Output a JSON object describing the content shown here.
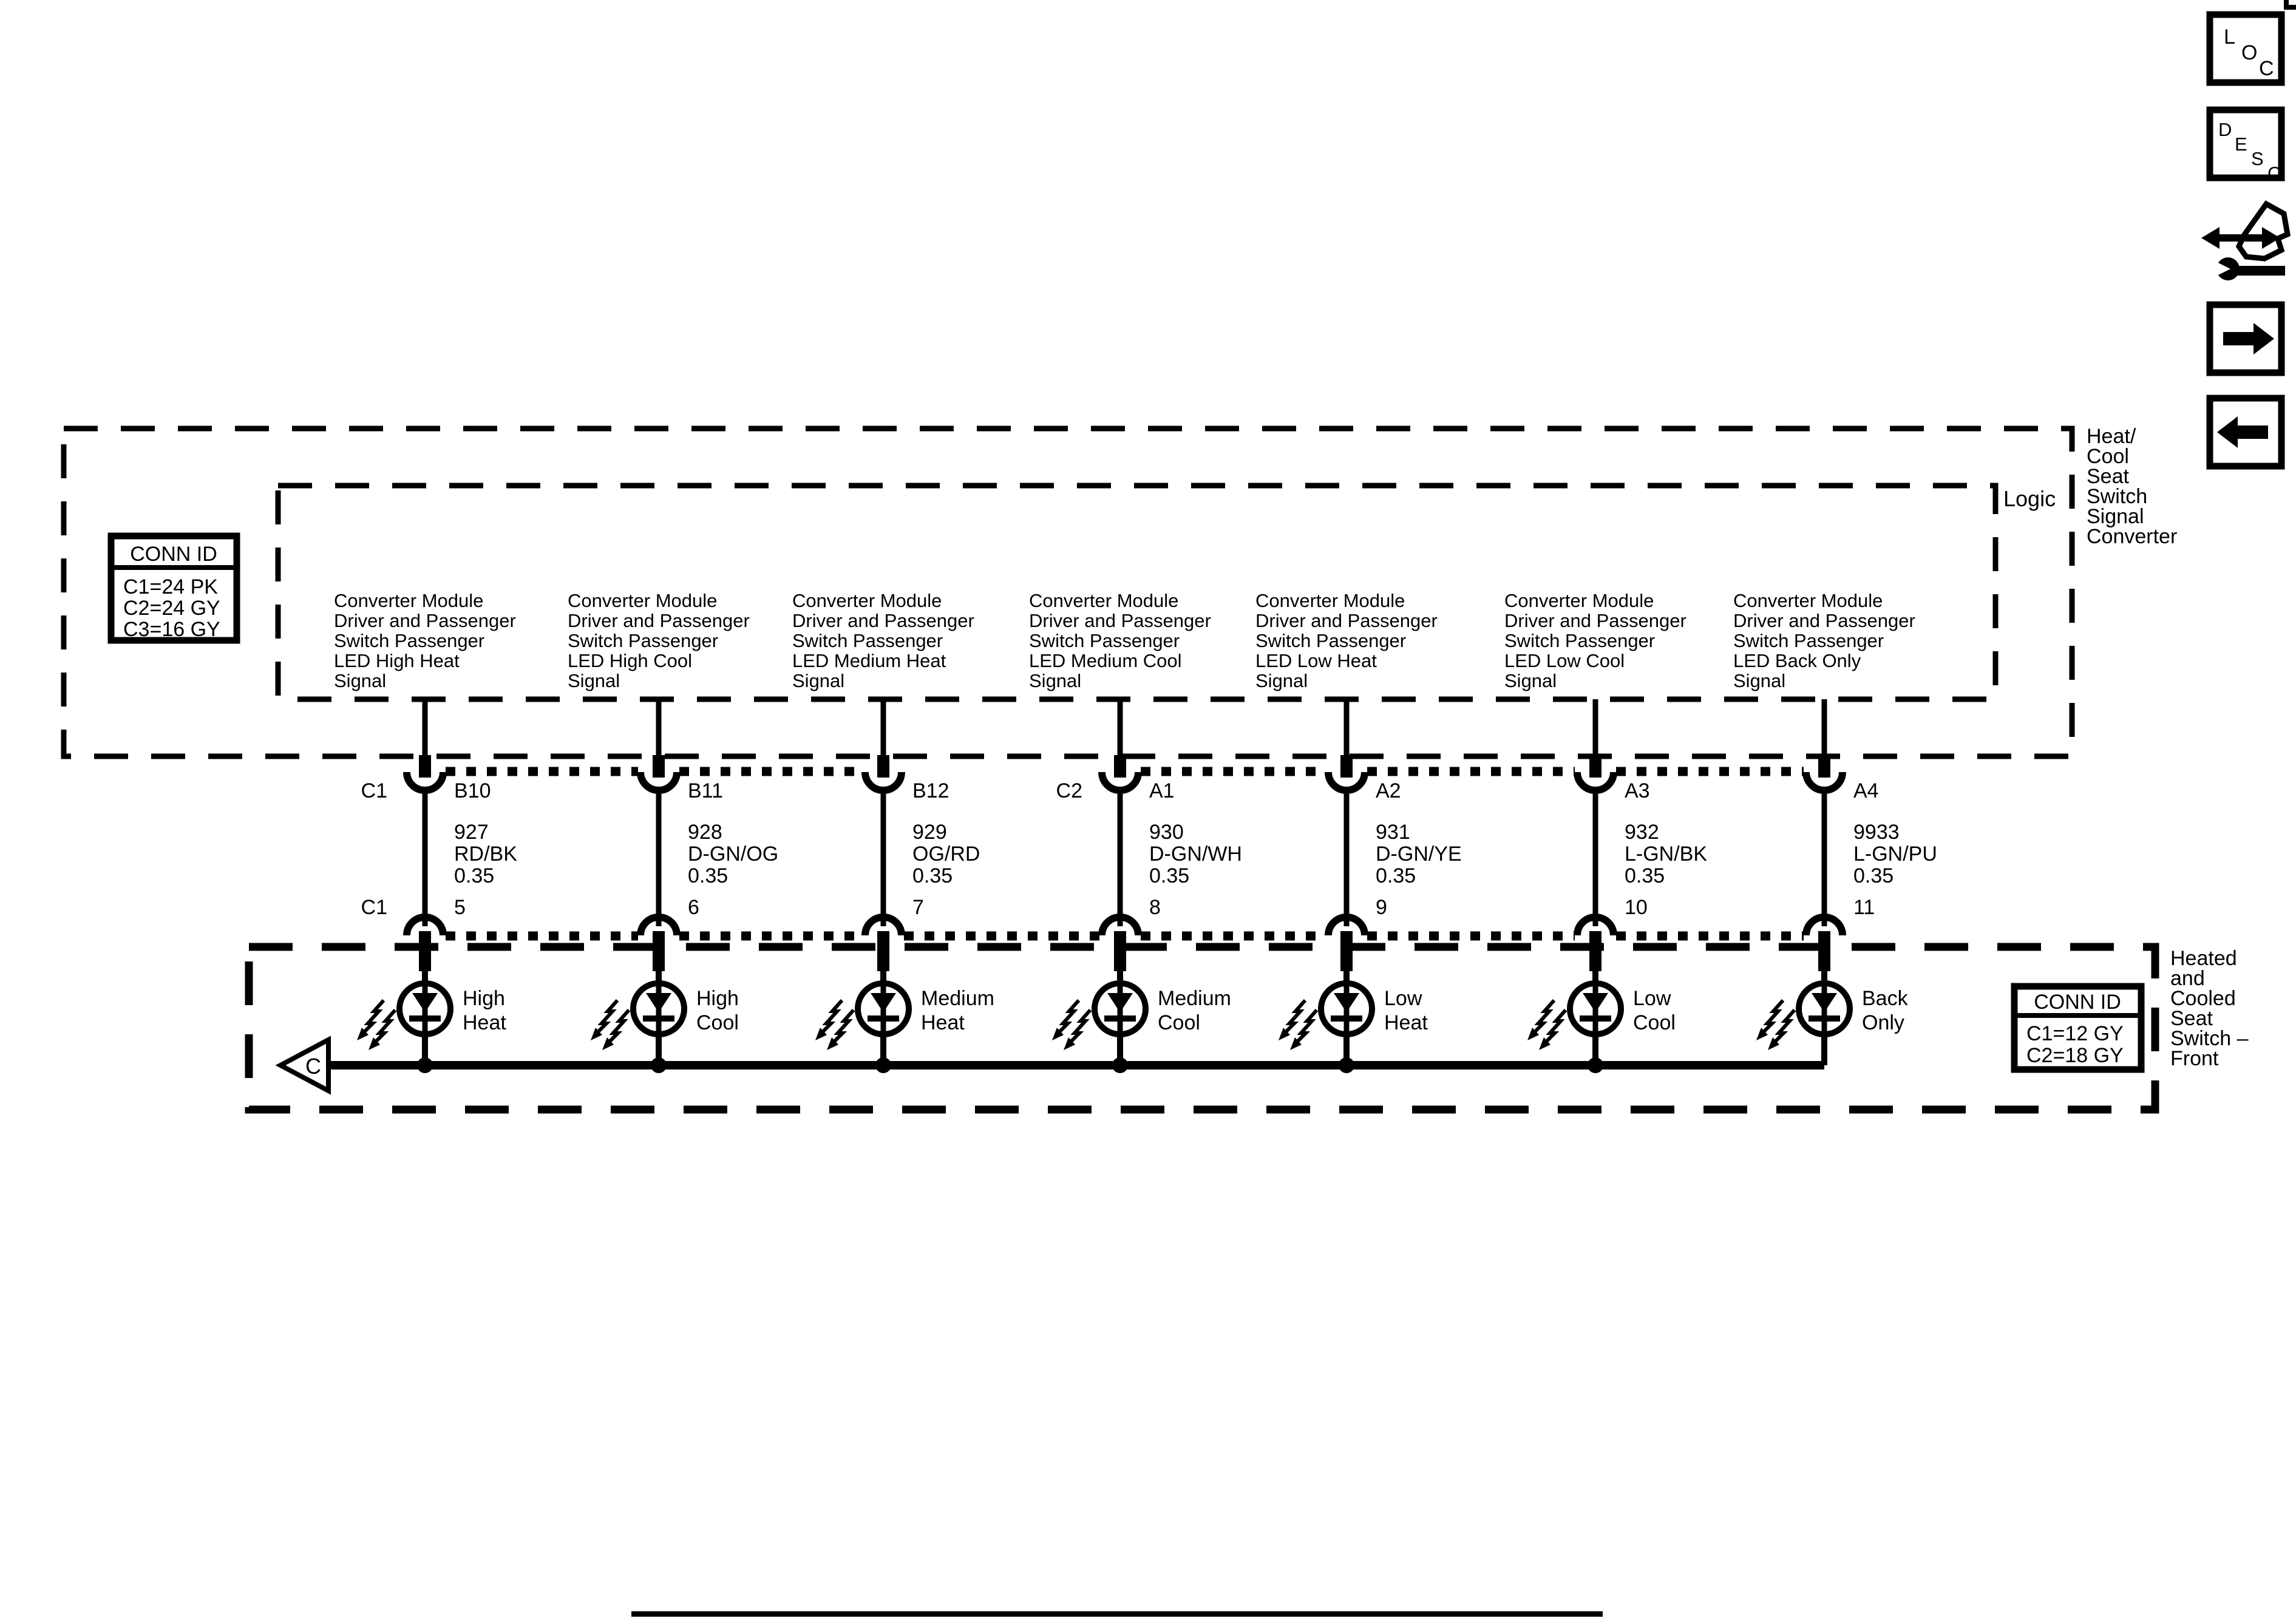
{
  "toolbar": {
    "buttons": [
      {
        "id": "loc",
        "label": "LOC",
        "letters": [
          "L",
          "O",
          "C"
        ]
      },
      {
        "id": "desc",
        "label": "DESC",
        "letters": [
          "D",
          "E",
          "S",
          "C"
        ]
      },
      {
        "id": "service",
        "label": "vehicle-service"
      },
      {
        "id": "forward",
        "label": "right-arrow"
      },
      {
        "id": "back",
        "label": "left-arrow"
      }
    ]
  },
  "converter_box": {
    "title_lines": [
      "Heat/",
      "Cool",
      "Seat",
      "Switch",
      "Signal",
      "Converter"
    ],
    "logic_label": "Logic",
    "conn_id": {
      "header": "CONN ID",
      "rows": [
        "C1=24 PK",
        "C2=24 GY",
        "C3=16 GY"
      ]
    }
  },
  "switch_box": {
    "title_lines": [
      "Heated",
      "and",
      "Cooled",
      "Seat",
      "Switch –",
      "Front"
    ],
    "conn_id": {
      "header": "CONN ID",
      "rows": [
        "C1=12 GY",
        "C2=18 GY"
      ]
    },
    "offpage_ref": "C"
  },
  "columns": [
    {
      "signal_lines": [
        "Converter Module",
        "Driver and Passenger",
        "Switch Passenger",
        "LED High Heat",
        "Signal"
      ],
      "top_conn": "C1",
      "top_pin": "B10",
      "wire": {
        "circuit": "927",
        "color": "RD/BK",
        "gauge": "0.35"
      },
      "bottom_conn": "C1",
      "bottom_pin": "5",
      "led_lines": [
        "High",
        "Heat"
      ]
    },
    {
      "signal_lines": [
        "Converter Module",
        "Driver and Passenger",
        "Switch Passenger",
        "LED High Cool",
        "Signal"
      ],
      "top_conn": "",
      "top_pin": "B11",
      "wire": {
        "circuit": "928",
        "color": "D-GN/OG",
        "gauge": "0.35"
      },
      "bottom_conn": "",
      "bottom_pin": "6",
      "led_lines": [
        "High",
        "Cool"
      ]
    },
    {
      "signal_lines": [
        "Converter Module",
        "Driver and Passenger",
        "Switch Passenger",
        "LED Medium Heat",
        "Signal"
      ],
      "top_conn": "",
      "top_pin": "B12",
      "wire": {
        "circuit": "929",
        "color": "OG/RD",
        "gauge": "0.35"
      },
      "bottom_conn": "",
      "bottom_pin": "7",
      "led_lines": [
        "Medium",
        "Heat"
      ]
    },
    {
      "signal_lines": [
        "Converter Module",
        "Driver and Passenger",
        "Switch Passenger",
        "LED Medium Cool",
        "Signal"
      ],
      "top_conn": "C2",
      "top_pin": "A1",
      "wire": {
        "circuit": "930",
        "color": "D-GN/WH",
        "gauge": "0.35"
      },
      "bottom_conn": "",
      "bottom_pin": "8",
      "led_lines": [
        "Medium",
        "Cool"
      ]
    },
    {
      "signal_lines": [
        "Converter Module",
        "Driver and Passenger",
        "Switch Passenger",
        "LED Low Heat",
        "Signal"
      ],
      "top_conn": "",
      "top_pin": "A2",
      "wire": {
        "circuit": "931",
        "color": "D-GN/YE",
        "gauge": "0.35"
      },
      "bottom_conn": "",
      "bottom_pin": "9",
      "led_lines": [
        "Low",
        "Heat"
      ]
    },
    {
      "signal_lines": [
        "Converter Module",
        "Driver and Passenger",
        "Switch Passenger",
        "LED Low Cool",
        "Signal"
      ],
      "top_conn": "",
      "top_pin": "A3",
      "wire": {
        "circuit": "932",
        "color": "L-GN/BK",
        "gauge": "0.35"
      },
      "bottom_conn": "",
      "bottom_pin": "10",
      "led_lines": [
        "Low",
        "Cool"
      ]
    },
    {
      "signal_lines": [
        "Converter Module",
        "Driver and Passenger",
        "Switch Passenger",
        "LED Back Only",
        "Signal"
      ],
      "top_conn": "",
      "top_pin": "A4",
      "wire": {
        "circuit": "9933",
        "color": "L-GN/PU",
        "gauge": "0.35"
      },
      "bottom_conn": "",
      "bottom_pin": "11",
      "led_lines": [
        "Back",
        "Only"
      ]
    }
  ],
  "colors": {
    "ink": "#000000",
    "paper": "#ffffff"
  }
}
